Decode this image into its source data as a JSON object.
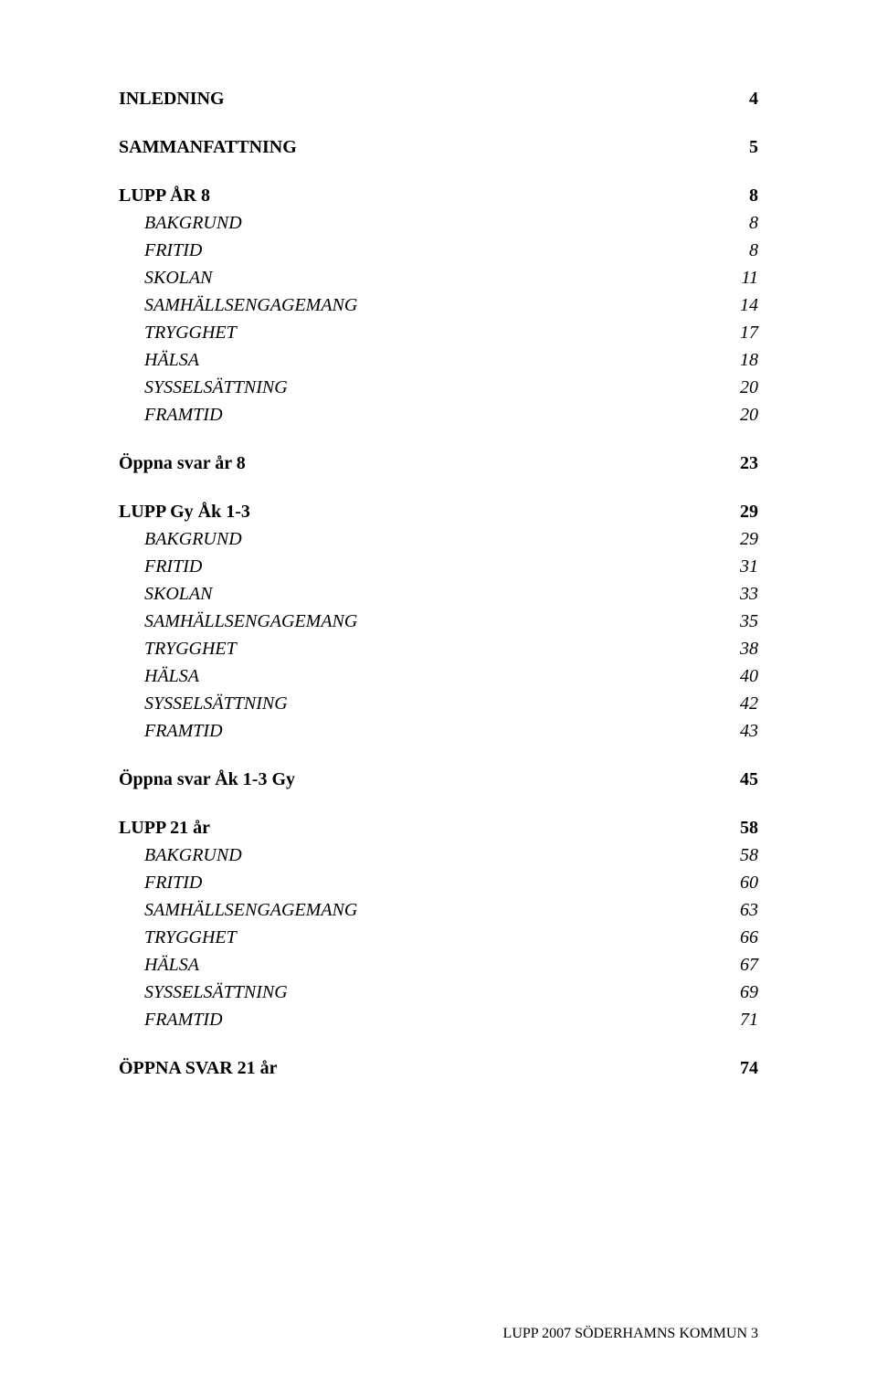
{
  "toc": [
    {
      "label": "INLEDNING",
      "page": "4",
      "level": 1,
      "first": true
    },
    {
      "label": "SAMMANFATTNING",
      "page": "5",
      "level": 1
    },
    {
      "label": "LUPP ÅR 8",
      "page": "8",
      "level": 1
    },
    {
      "label": "BAKGRUND",
      "page": "8",
      "level": 2
    },
    {
      "label": "FRITID",
      "page": "8",
      "level": 2
    },
    {
      "label": "SKOLAN",
      "page": "11",
      "level": 2
    },
    {
      "label": "SAMHÄLLSENGAGEMANG",
      "page": "14",
      "level": 2
    },
    {
      "label": "TRYGGHET",
      "page": "17",
      "level": 2
    },
    {
      "label": "HÄLSA",
      "page": "18",
      "level": 2
    },
    {
      "label": "SYSSELSÄTTNING",
      "page": "20",
      "level": 2
    },
    {
      "label": "FRAMTID",
      "page": "20",
      "level": 2
    },
    {
      "label": "Öppna svar år 8",
      "page": "23",
      "level": 1
    },
    {
      "label": "LUPP Gy Åk 1-3",
      "page": "29",
      "level": 1
    },
    {
      "label": "BAKGRUND",
      "page": "29",
      "level": 2
    },
    {
      "label": "FRITID",
      "page": "31",
      "level": 2
    },
    {
      "label": "SKOLAN",
      "page": "33",
      "level": 2
    },
    {
      "label": "SAMHÄLLSENGAGEMANG",
      "page": "35",
      "level": 2
    },
    {
      "label": "TRYGGHET",
      "page": "38",
      "level": 2
    },
    {
      "label": "HÄLSA",
      "page": "40",
      "level": 2
    },
    {
      "label": "SYSSELSÄTTNING",
      "page": "42",
      "level": 2
    },
    {
      "label": "FRAMTID",
      "page": "43",
      "level": 2
    },
    {
      "label": "Öppna svar Åk 1-3 Gy",
      "page": "45",
      "level": 1
    },
    {
      "label": "LUPP 21 år",
      "page": "58",
      "level": 1
    },
    {
      "label": "BAKGRUND",
      "page": "58",
      "level": 2
    },
    {
      "label": "FRITID",
      "page": "60",
      "level": 2
    },
    {
      "label": "SAMHÄLLSENGAGEMANG",
      "page": "63",
      "level": 2
    },
    {
      "label": "TRYGGHET",
      "page": "66",
      "level": 2
    },
    {
      "label": "HÄLSA",
      "page": "67",
      "level": 2
    },
    {
      "label": "SYSSELSÄTTNING",
      "page": "69",
      "level": 2
    },
    {
      "label": "FRAMTID",
      "page": "71",
      "level": 2
    },
    {
      "label": "ÖPPNA SVAR 21 år",
      "page": "74",
      "level": 1
    }
  ],
  "footer": "LUPP 2007 SÖDERHAMNS KOMMUN 3"
}
